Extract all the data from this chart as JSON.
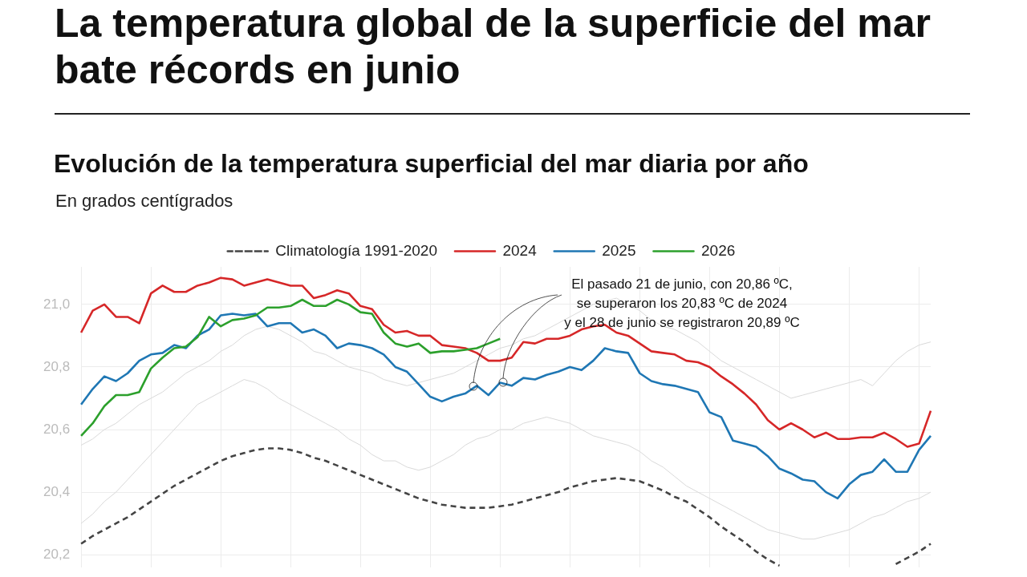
{
  "chart_data": {
    "type": "line",
    "title": "La temperatura global de la superficie del mar bate récords en junio",
    "subtitle": "Evolución de la temperatura superficial del mar diaria por año",
    "categories": [
      null,
      null,
      null,
      null,
      null,
      null,
      null,
      null,
      null,
      null,
      null,
      null,
      null,
      null,
      null,
      null,
      null,
      null,
      null,
      null,
      null,
      null,
      null,
      null,
      null,
      null,
      null,
      null,
      null,
      null,
      null,
      null,
      null,
      null,
      null,
      null,
      null,
      null,
      null,
      null,
      null,
      null,
      null,
      null,
      null,
      null,
      null,
      null,
      null,
      null,
      null,
      null,
      null,
      null,
      null,
      null,
      null,
      null,
      null,
      null,
      null,
      null,
      null,
      null,
      null,
      null,
      null,
      null,
      null,
      null,
      null,
      null,
      null,
      null
    ],
    "ylim": [
      20.16,
      21.12
    ],
    "yticks": [
      {
        "value": 20.2,
        "label": "20,2"
      },
      {
        "value": 20.4,
        "label": "20,4"
      },
      {
        "value": 20.6,
        "label": "20,6"
      },
      {
        "value": 20.8,
        "label": "20,8"
      },
      {
        "value": 21.0,
        "label": "21,0"
      }
    ],
    "grid": true,
    "legend": "top",
    "tick_labels": "y",
    "annotations": [
      "En grados centígrados",
      "El pasado 21 de junio, con 20,86 ºC,\nse superaron los 20,83 ºC de 2024\ny el 28 de junio se registraron 20,89 ºC"
    ],
    "series": [
      {
        "color": "#d9d9d9",
        "values": [
          20.55,
          20.57,
          20.6,
          20.62,
          20.65,
          20.68,
          20.7,
          20.72,
          20.75,
          20.78,
          20.8,
          20.82,
          20.85,
          20.87,
          20.9,
          20.92,
          20.93,
          20.92,
          20.9,
          20.88,
          20.85,
          20.84,
          20.82,
          20.8,
          20.79,
          20.78,
          20.76,
          20.75,
          20.74,
          20.75,
          20.76,
          20.77,
          20.78,
          20.8,
          20.82,
          20.84,
          20.86,
          20.87,
          20.89,
          20.9,
          20.92,
          20.94,
          20.96,
          20.98,
          21.0,
          21.01,
          21.02,
          21.0,
          20.98,
          20.95,
          20.93,
          20.92,
          20.9,
          20.88,
          20.85,
          20.82,
          20.8,
          20.78,
          20.76,
          20.74,
          20.72,
          20.7,
          20.71,
          20.72,
          20.73,
          20.74,
          20.75,
          20.76,
          20.74,
          20.78,
          20.82,
          20.85,
          20.87,
          20.88
        ]
      },
      {
        "color": "#d9d9d9",
        "values": [
          20.3,
          20.33,
          20.37,
          20.4,
          20.44,
          20.48,
          20.52,
          20.56,
          20.6,
          20.64,
          20.68,
          20.7,
          20.72,
          20.74,
          20.76,
          20.75,
          20.73,
          20.7,
          20.68,
          20.66,
          20.64,
          20.62,
          20.6,
          20.57,
          20.55,
          20.52,
          20.5,
          20.5,
          20.48,
          20.47,
          20.48,
          20.5,
          20.52,
          20.55,
          20.57,
          20.58,
          20.6,
          20.6,
          20.62,
          20.63,
          20.64,
          20.63,
          20.62,
          20.6,
          20.58,
          20.57,
          20.56,
          20.55,
          20.53,
          20.5,
          20.48,
          20.45,
          20.42,
          20.4,
          20.38,
          20.36,
          20.34,
          20.32,
          20.3,
          20.28,
          20.27,
          20.26,
          20.25,
          20.25,
          20.26,
          20.27,
          20.28,
          20.3,
          20.32,
          20.33,
          20.35,
          20.37,
          20.38,
          20.4
        ]
      },
      {
        "name": "Climatología 1991-2020",
        "color": "#444444",
        "line_style": "dashed",
        "values": [
          20.235,
          20.26,
          20.28,
          20.3,
          20.32,
          20.345,
          20.37,
          20.395,
          20.42,
          20.44,
          20.46,
          20.48,
          20.5,
          20.515,
          20.525,
          20.535,
          20.54,
          20.54,
          20.535,
          20.525,
          20.51,
          20.5,
          20.485,
          20.47,
          20.455,
          20.44,
          20.425,
          20.41,
          20.395,
          20.38,
          20.37,
          20.36,
          20.355,
          20.35,
          20.35,
          20.35,
          20.355,
          20.36,
          20.37,
          20.38,
          20.39,
          20.4,
          20.415,
          20.425,
          20.435,
          20.44,
          20.445,
          20.44,
          20.435,
          20.42,
          20.405,
          20.385,
          20.37,
          20.345,
          20.32,
          20.29,
          20.265,
          20.24,
          20.21,
          20.185,
          20.165,
          null,
          null,
          null,
          null,
          null,
          null,
          null,
          null,
          null,
          20.17,
          20.19,
          20.21,
          20.235
        ]
      },
      {
        "name": "2024",
        "color": "#d62728",
        "values": [
          20.91,
          20.98,
          21.0,
          20.96,
          20.96,
          20.94,
          21.035,
          21.06,
          21.04,
          21.04,
          21.06,
          21.07,
          21.085,
          21.08,
          21.06,
          21.07,
          21.08,
          21.07,
          21.06,
          21.06,
          21.02,
          21.03,
          21.045,
          21.035,
          20.995,
          20.985,
          20.935,
          20.91,
          20.915,
          20.9,
          20.9,
          20.87,
          20.865,
          20.86,
          20.845,
          20.82,
          20.82,
          20.83,
          20.88,
          20.875,
          20.89,
          20.89,
          20.9,
          20.92,
          20.93,
          20.935,
          20.91,
          20.9,
          20.875,
          20.85,
          20.845,
          20.84,
          20.82,
          20.815,
          20.8,
          20.77,
          20.745,
          20.715,
          20.68,
          20.63,
          20.6,
          20.62,
          20.6,
          20.575,
          20.59,
          20.57,
          20.57,
          20.575,
          20.575,
          20.59,
          20.57,
          20.545,
          20.555,
          20.66
        ]
      },
      {
        "name": "2025",
        "color": "#1f77b4",
        "values": [
          20.68,
          20.73,
          20.77,
          20.755,
          20.78,
          20.82,
          20.84,
          20.845,
          20.87,
          20.86,
          20.9,
          20.92,
          20.965,
          20.97,
          20.965,
          20.97,
          20.93,
          20.94,
          20.94,
          20.91,
          20.92,
          20.9,
          20.86,
          20.875,
          20.87,
          20.86,
          20.84,
          20.8,
          20.785,
          20.745,
          20.705,
          20.69,
          20.705,
          20.715,
          20.74,
          20.71,
          20.75,
          20.74,
          20.765,
          20.76,
          20.775,
          20.785,
          20.8,
          20.79,
          20.82,
          20.86,
          20.85,
          20.845,
          20.78,
          20.755,
          20.745,
          20.74,
          20.73,
          20.72,
          20.655,
          20.64,
          20.565,
          20.555,
          20.545,
          20.515,
          20.475,
          20.46,
          20.44,
          20.435,
          20.4,
          20.38,
          20.425,
          20.455,
          20.465,
          20.505,
          20.465,
          20.465,
          20.535,
          20.58
        ]
      },
      {
        "name": "2026",
        "color": "#2ca02c",
        "values": [
          20.58,
          20.62,
          20.675,
          20.71,
          20.71,
          20.72,
          20.795,
          20.83,
          20.86,
          20.865,
          20.895,
          20.96,
          20.93,
          20.95,
          20.955,
          20.965,
          20.99,
          20.99,
          20.995,
          21.015,
          20.995,
          20.995,
          21.015,
          21.0,
          20.975,
          20.97,
          20.91,
          20.875,
          20.865,
          20.875,
          20.845,
          20.85,
          20.85,
          20.855,
          20.86,
          20.875,
          20.89,
          null,
          null,
          null,
          null,
          null,
          null,
          null,
          null,
          null,
          null,
          null,
          null,
          null,
          null,
          null,
          null,
          null,
          null,
          null,
          null,
          null,
          null,
          null,
          null,
          null,
          null,
          null,
          null,
          null,
          null,
          null,
          null,
          null,
          null,
          null,
          null,
          null
        ]
      }
    ]
  }
}
